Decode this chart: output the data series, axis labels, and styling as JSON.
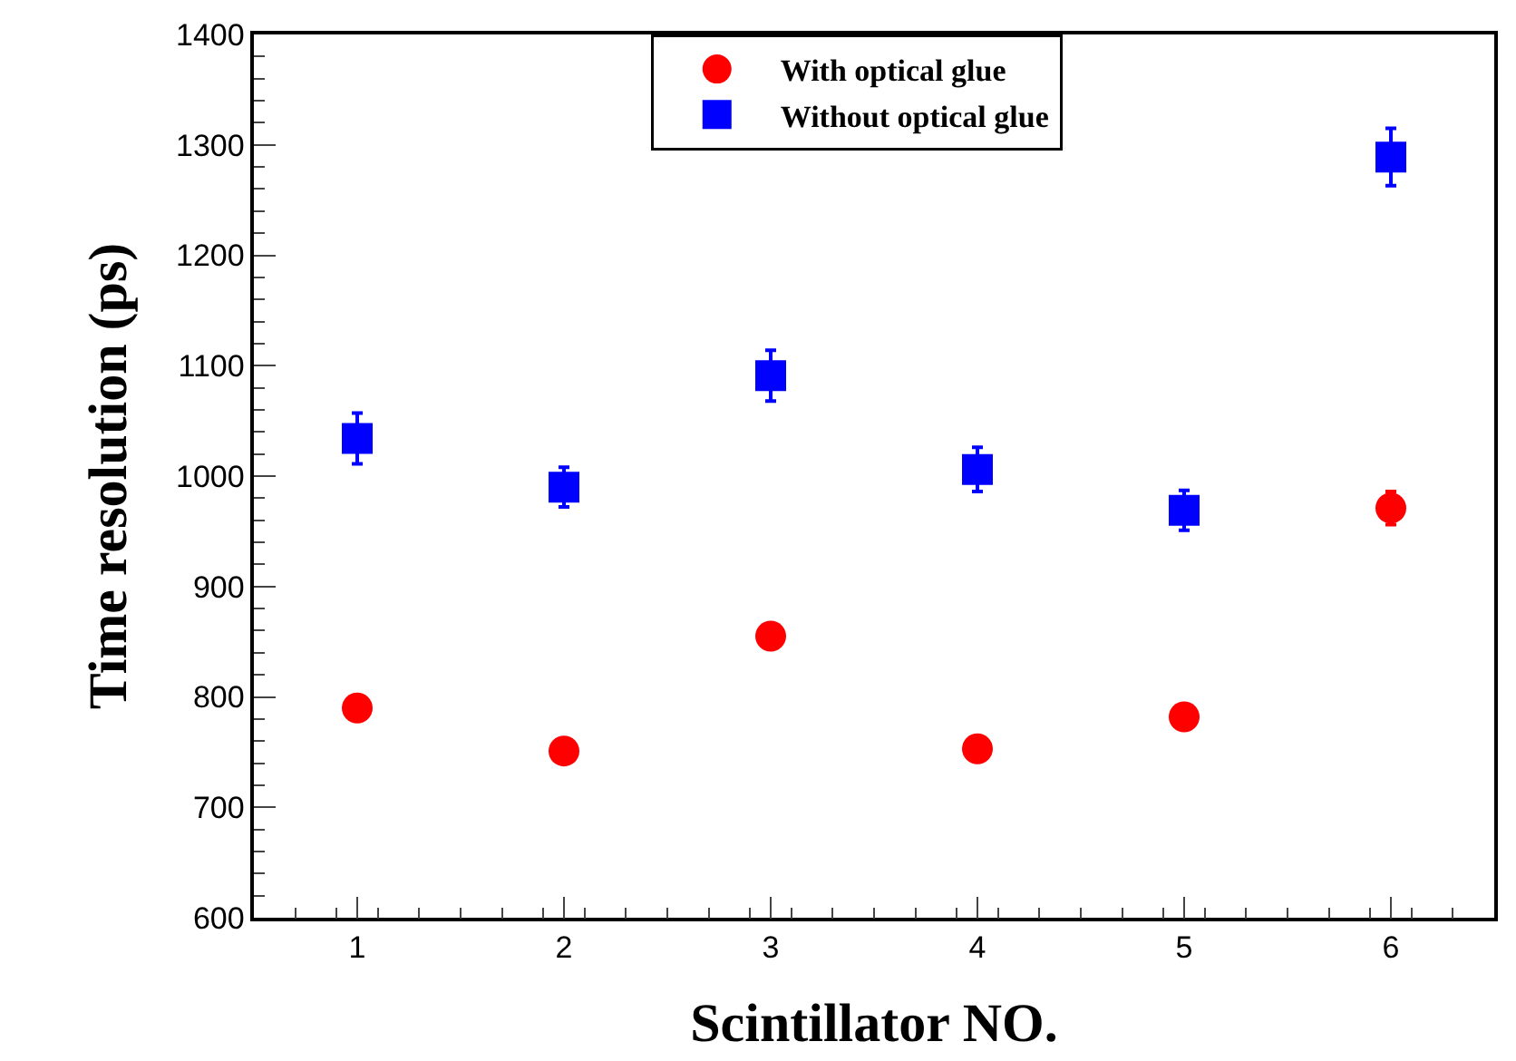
{
  "chart_data": {
    "type": "scatter",
    "xlabel": "Scintillator NO.",
    "ylabel": "Time resolution (ps)",
    "x": [
      1,
      2,
      3,
      4,
      5,
      6
    ],
    "series": [
      {
        "name": "With optical glue",
        "color": "#ff0000",
        "marker": "circle",
        "values": [
          790,
          751,
          855,
          753,
          782,
          971
        ],
        "errors": [
          null,
          null,
          null,
          null,
          null,
          15
        ]
      },
      {
        "name": "Without optical glue",
        "color": "#0000ff",
        "marker": "square",
        "values": [
          1034,
          990,
          1091,
          1006,
          969,
          1289
        ],
        "errors": [
          23,
          18,
          23,
          20,
          18,
          26
        ]
      }
    ],
    "xlim": [
      0.5,
      6.5
    ],
    "xticks": [
      1,
      2,
      3,
      4,
      5,
      6
    ],
    "ylim": [
      600,
      1400
    ],
    "yticks": [
      600,
      700,
      800,
      900,
      1000,
      1100,
      1200,
      1300,
      1400
    ],
    "legend": "top"
  }
}
